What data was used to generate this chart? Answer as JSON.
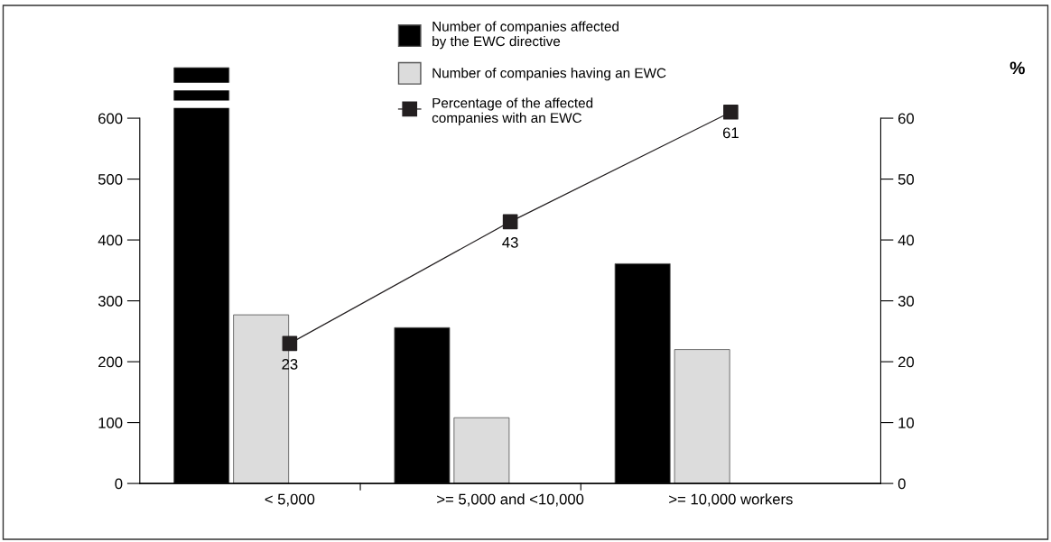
{
  "chart_data": {
    "type": "bar",
    "categories": [
      "< 5,000",
      ">= 5,000 and <10,000",
      ">= 10,000 workers"
    ],
    "series": [
      {
        "name": "Number of companies affected\nby the EWC directive",
        "color": "#000000",
        "values": [
          683,
          256,
          361
        ]
      },
      {
        "name": "Number of companies having an EWC",
        "color": "#dcdcdc",
        "values": [
          277,
          108,
          220
        ]
      },
      {
        "name": "Percentage of the affected\ncompanies with an EWC",
        "type": "line",
        "axis": "y2",
        "color": "#231f20",
        "values": [
          23,
          43,
          61
        ],
        "value_labels": [
          "23",
          "43",
          "61"
        ]
      }
    ],
    "annotations": [
      "%"
    ],
    "ylim": [
      0,
      690
    ],
    "yticks": [
      0,
      100,
      200,
      300,
      400,
      500,
      600
    ],
    "y2lim": [
      0,
      69
    ],
    "y2ticks": [
      0,
      10,
      20,
      30,
      40,
      50,
      60
    ],
    "marker": "square",
    "grid": false,
    "legend": "top"
  }
}
